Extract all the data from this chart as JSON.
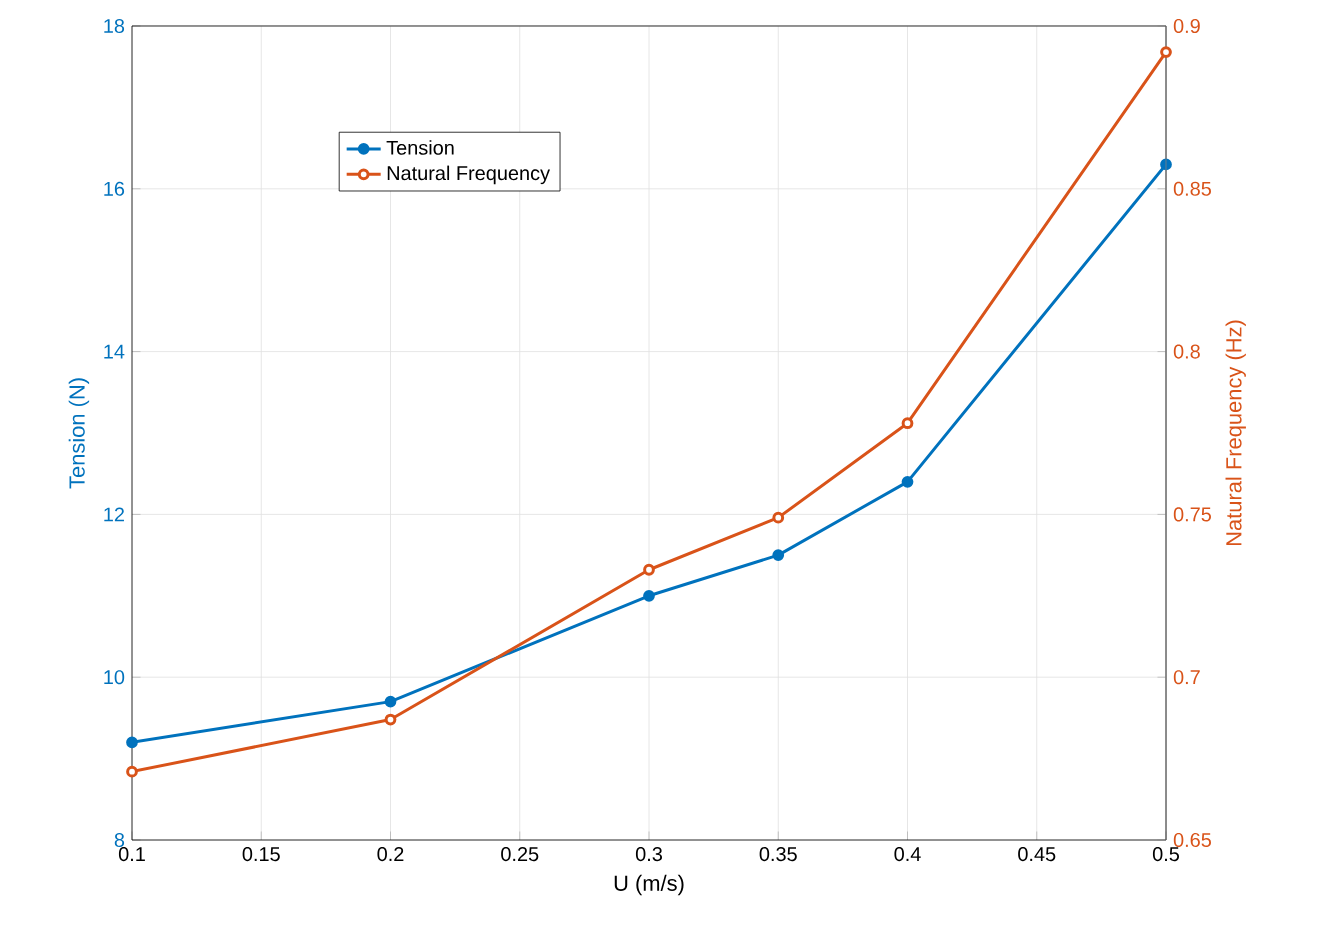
{
  "chart_data": {
    "type": "line",
    "xlabel": "U (m/s)",
    "ylabel": "Tension (N)",
    "y2label": "Natural Frequency (Hz)",
    "x": [
      0.1,
      0.2,
      0.3,
      0.35,
      0.4,
      0.5
    ],
    "series": [
      {
        "name": "Tension",
        "color": "#0072bd",
        "marker": "circle",
        "values": [
          9.2,
          9.7,
          11.0,
          11.5,
          12.4,
          16.3
        ]
      },
      {
        "name": "Natural Frequency",
        "color": "#d95319",
        "marker": "circle",
        "axis": "y2",
        "values": [
          0.671,
          0.687,
          0.733,
          0.749,
          0.778,
          0.892
        ]
      }
    ],
    "xlim": [
      0.1,
      0.5
    ],
    "xticks": [
      0.1,
      0.15,
      0.2,
      0.25,
      0.3,
      0.35,
      0.4,
      0.45,
      0.5
    ],
    "ylim": [
      8,
      18
    ],
    "yticks": [
      8,
      10,
      12,
      14,
      16,
      18
    ],
    "y2lim": [
      0.65,
      0.9
    ],
    "y2ticks": [
      0.65,
      0.7,
      0.75,
      0.8,
      0.85,
      0.9
    ],
    "grid": true,
    "legend": "top left",
    "line_style": "solid"
  }
}
